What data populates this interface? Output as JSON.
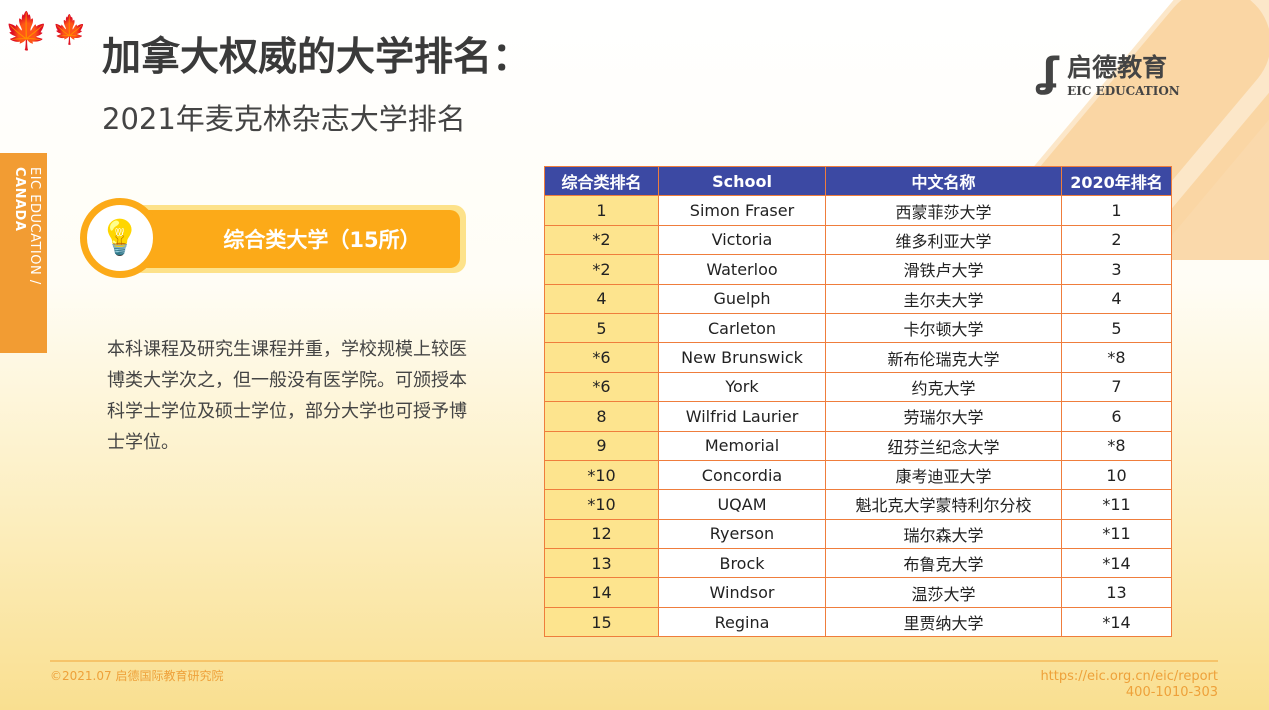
{
  "header": {
    "title": "加拿大权威的大学排名：",
    "subtitle": "2021年麦克林杂志大学排名"
  },
  "side_tab": {
    "text_light": "EIC EDUCATION / ",
    "text_bold": "CANADA"
  },
  "logo": {
    "cn": "启德教育",
    "en": "EIC EDUCATION"
  },
  "badge": {
    "label": "综合类大学（15所）",
    "icon": "lightbulb-icon"
  },
  "description": "本科课程及研究生课程并重，学校规模上较医博类大学次之，但一般没有医学院。可颁授本科学士学位及硕士学位，部分大学也可授予博士学位。",
  "table": {
    "headers": [
      "综合类排名",
      "School",
      "中文名称",
      "2020年排名"
    ],
    "rows": [
      [
        "1",
        "Simon Fraser",
        "西蒙菲莎大学",
        "1"
      ],
      [
        "*2",
        "Victoria",
        "维多利亚大学",
        "2"
      ],
      [
        "*2",
        "Waterloo",
        "滑铁卢大学",
        "3"
      ],
      [
        "4",
        "Guelph",
        "圭尔夫大学",
        "4"
      ],
      [
        "5",
        "Carleton",
        "卡尔顿大学",
        "5"
      ],
      [
        "*6",
        "New Brunswick",
        "新布伦瑞克大学",
        "*8"
      ],
      [
        "*6",
        "York",
        "约克大学",
        "7"
      ],
      [
        "8",
        "Wilfrid Laurier",
        "劳瑞尔大学",
        "6"
      ],
      [
        "9",
        "Memorial",
        "纽芬兰纪念大学",
        "*8"
      ],
      [
        "*10",
        "Concordia",
        "康考迪亚大学",
        "10"
      ],
      [
        "*10",
        "UQAM",
        "魁北克大学蒙特利尔分校",
        "*11"
      ],
      [
        "12",
        "Ryerson",
        "瑞尔森大学",
        "*11"
      ],
      [
        "13",
        "Brock",
        "布鲁克大学",
        "*14"
      ],
      [
        "14",
        "Windsor",
        "温莎大学",
        "13"
      ],
      [
        "15",
        "Regina",
        "里贾纳大学",
        "*14"
      ]
    ]
  },
  "footer": {
    "copyright": "©2021.07 启德国际教育研究院",
    "url": "https://eic.org.cn/eic/report",
    "phone": "400-1010-303"
  },
  "colors": {
    "accent": "#fcaa18",
    "header_bg": "#3c49a3",
    "border": "#ef7d3c",
    "rank_bg": "#fde48e"
  }
}
